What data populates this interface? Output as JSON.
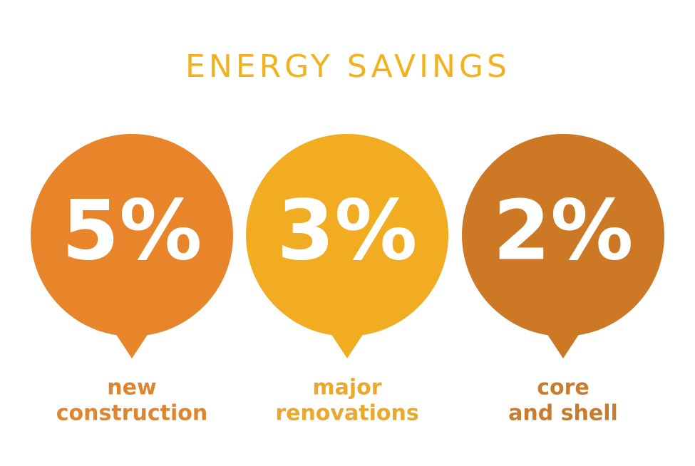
{
  "header": {
    "title": "ENERGY SAVINGS"
  },
  "items": [
    {
      "value": "5%",
      "label": [
        "new",
        "construction"
      ]
    },
    {
      "value": "3%",
      "label": [
        "major",
        "renovations"
      ]
    },
    {
      "value": "2%",
      "label": [
        "core",
        "and shell"
      ]
    }
  ]
}
